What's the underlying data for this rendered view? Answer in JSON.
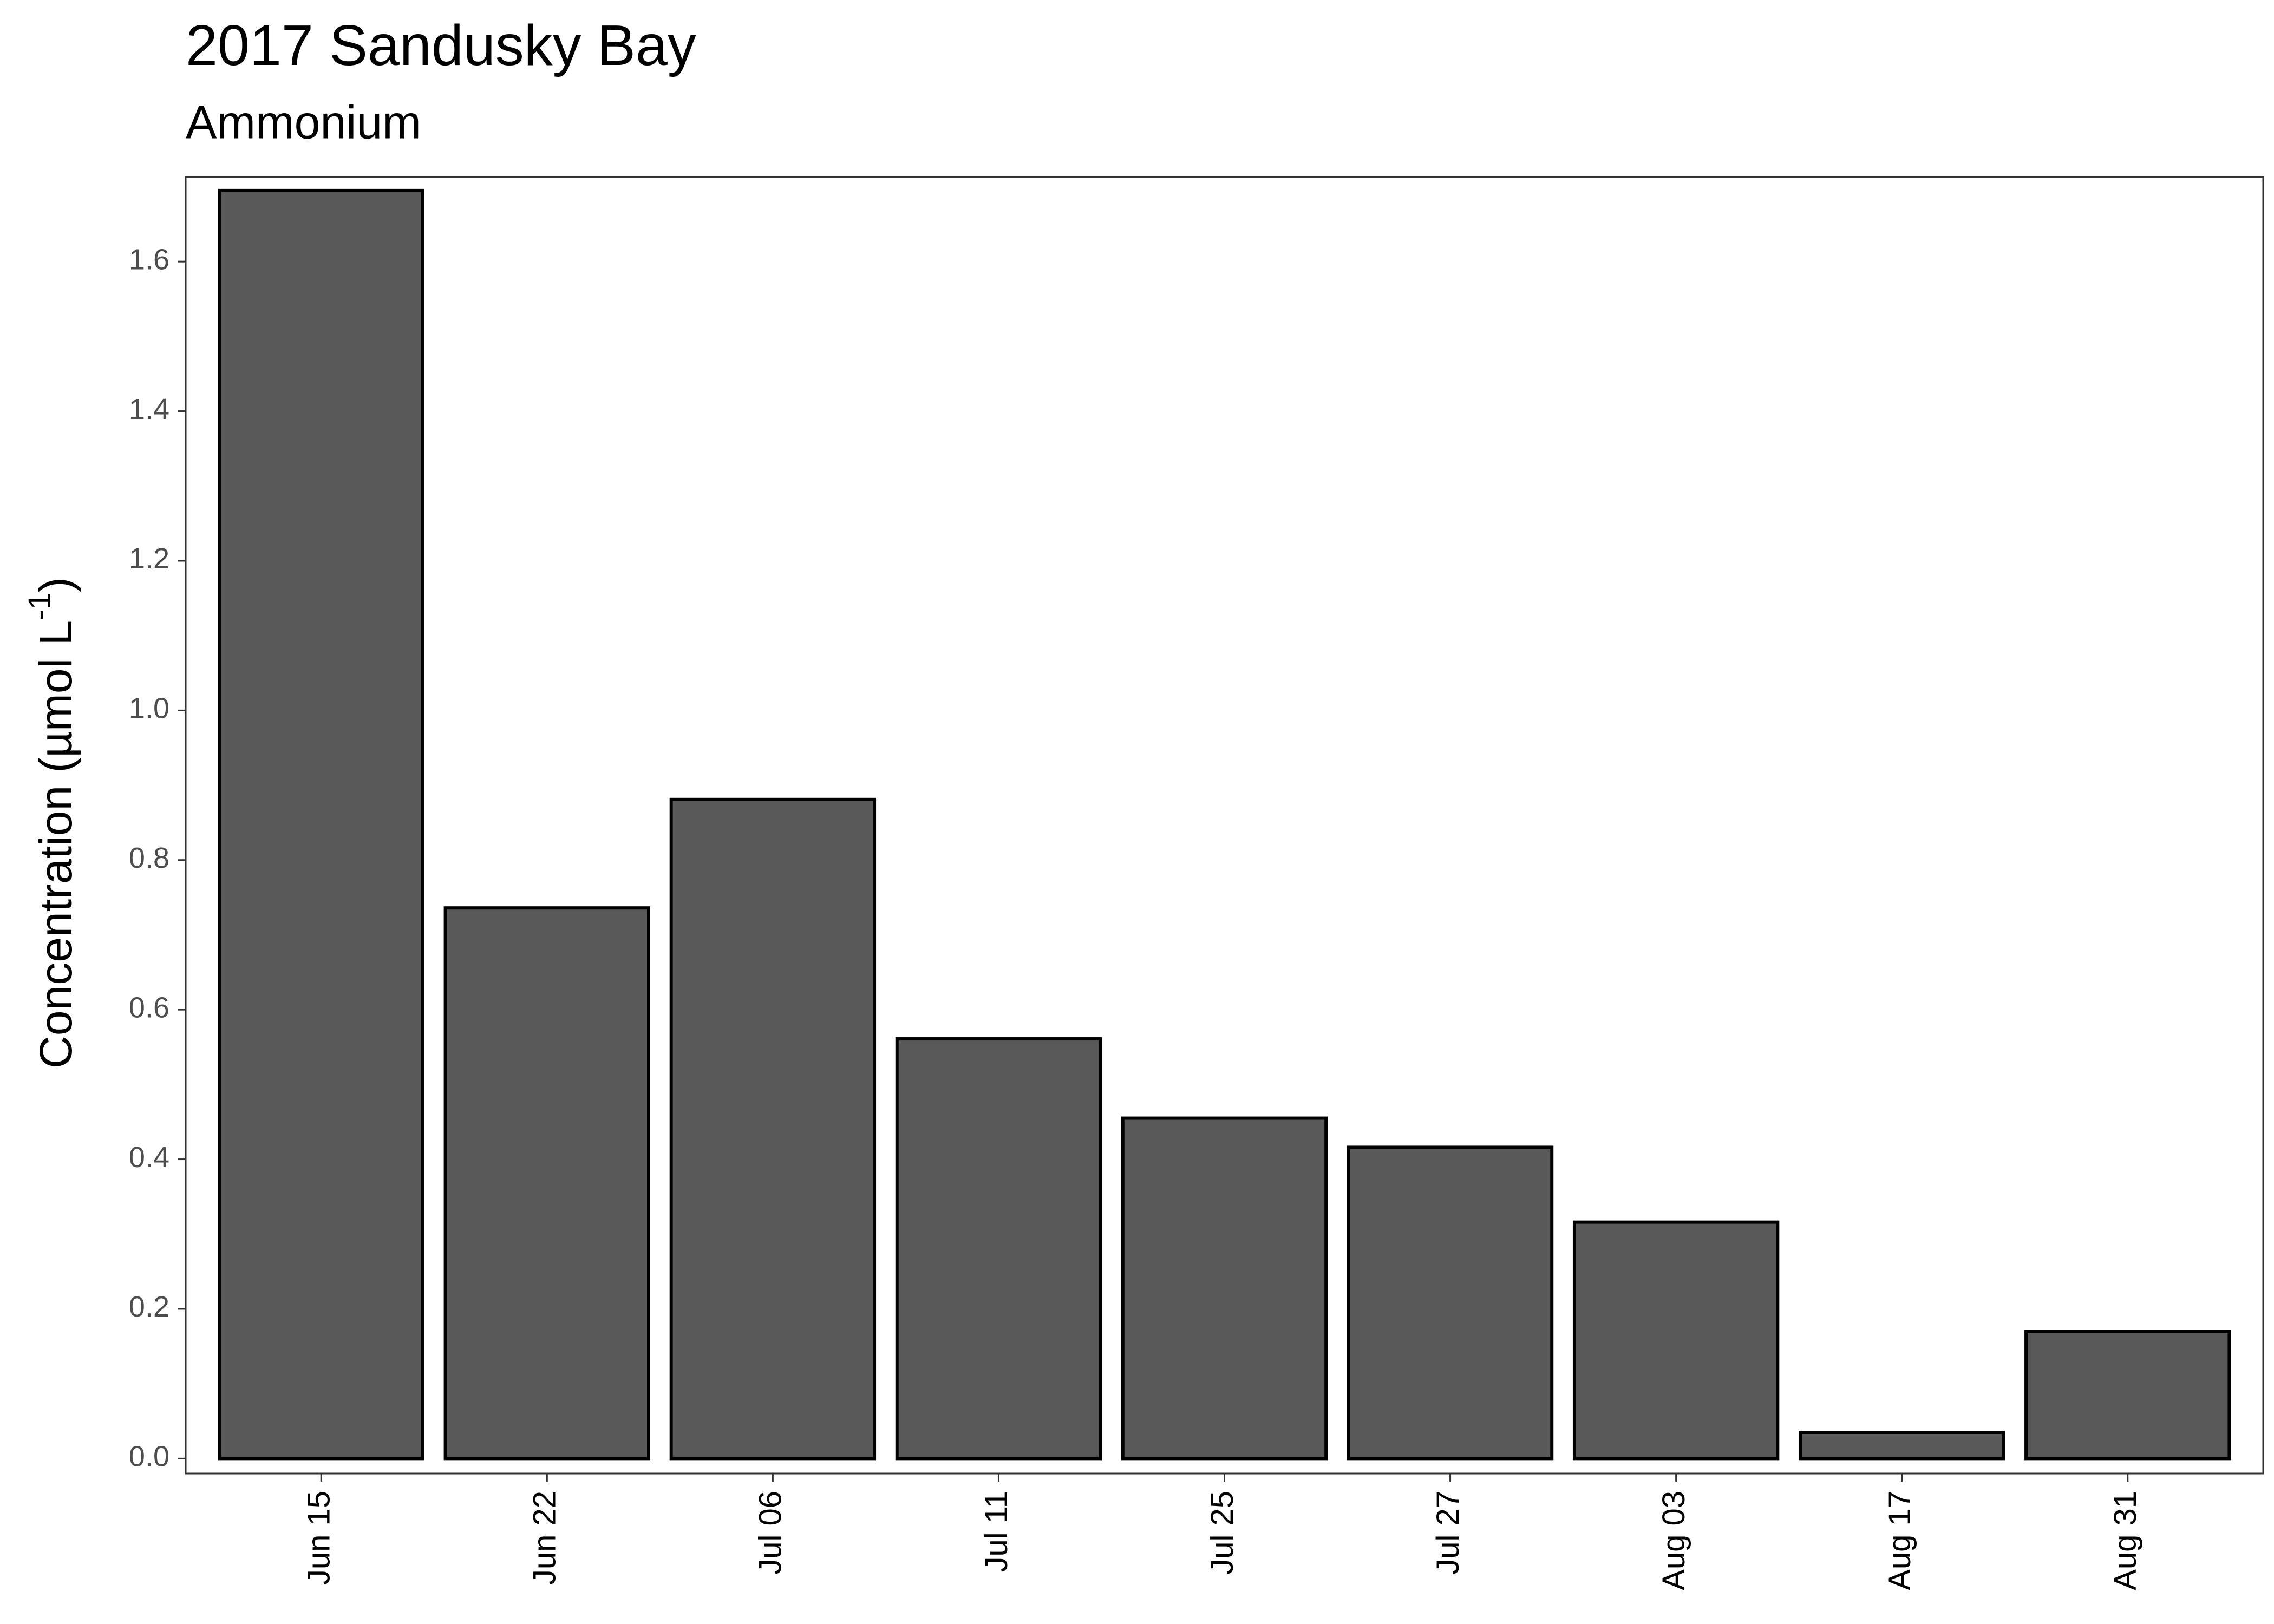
{
  "chart_data": {
    "type": "bar",
    "title": "2017 Sandusky Bay",
    "subtitle": "Ammonium",
    "y_label": {
      "text": "Concentration (µmol L",
      "superscript": "-1",
      "suffix": ")"
    },
    "categories": [
      "Jun 15",
      "Jun 22",
      "Jul 06",
      "Jul 11",
      "Jul 25",
      "Jul 27",
      "Aug 03",
      "Aug 17",
      "Aug 31"
    ],
    "values": [
      1.695,
      0.736,
      0.881,
      0.561,
      0.455,
      0.416,
      0.316,
      0.035,
      0.17
    ],
    "color": "#595959",
    "ylim": [
      -0.02,
      1.713
    ],
    "yticks": [
      {
        "value": 0,
        "label": "0.0"
      },
      0.2,
      0.4,
      0.6,
      0.8,
      {
        "value": 1,
        "label": "1.0"
      },
      1.2,
      1.4,
      1.6
    ],
    "grid": false
  }
}
